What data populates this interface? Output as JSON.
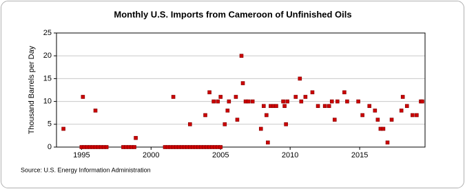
{
  "chart_data": {
    "type": "scatter",
    "title": "Monthly U.S. Imports from Cameroon of Unfinished Oils",
    "y_label": "Thousand Barrels per Day",
    "source": "Source: U.S. Energy Information Administration",
    "xlim": [
      1993.2,
      2019.7
    ],
    "xticks": [
      1995,
      2000,
      2005,
      2010,
      2015
    ],
    "ylim": [
      0,
      25
    ],
    "yticks": [
      0,
      5,
      10,
      15,
      20,
      25
    ],
    "grid": true,
    "series": [
      {
        "color": "#cc0000",
        "x": [
          1993.7,
          1995.0,
          1995.1,
          1995.2,
          1995.4,
          1995.6,
          1995.8,
          1996.0,
          1996.0,
          1996.2,
          1996.4,
          1996.6,
          1996.8,
          1998.0,
          1998.2,
          1998.4,
          1998.6,
          1998.8,
          1998.9,
          2001.0,
          2001.2,
          2001.4,
          2001.6,
          2001.6,
          2001.8,
          2002.0,
          2002.2,
          2002.4,
          2002.6,
          2002.8,
          2002.8,
          2003.0,
          2003.2,
          2003.4,
          2003.6,
          2003.8,
          2003.9,
          2004.0,
          2004.2,
          2004.2,
          2004.4,
          2004.5,
          2004.6,
          2004.8,
          2004.8,
          2005.0,
          2005.0,
          2005.3,
          2005.5,
          2005.6,
          2006.1,
          2006.2,
          2006.5,
          2006.6,
          2006.8,
          2007.0,
          2007.3,
          2007.9,
          2008.1,
          2008.3,
          2008.4,
          2008.6,
          2008.8,
          2009.0,
          2009.5,
          2009.6,
          2009.7,
          2009.8,
          2010.4,
          2010.7,
          2010.8,
          2011.1,
          2011.6,
          2012.0,
          2012.5,
          2012.8,
          2013.0,
          2013.2,
          2013.4,
          2013.9,
          2014.1,
          2014.9,
          2015.2,
          2015.7,
          2016.1,
          2016.3,
          2016.5,
          2016.7,
          2017.0,
          2017.3,
          2018.0,
          2018.1,
          2018.4,
          2018.8,
          2019.1,
          2019.4,
          2019.5
        ],
        "values": [
          4,
          0,
          11,
          0,
          0,
          0,
          0,
          0,
          8,
          0,
          0,
          0,
          0,
          0,
          0,
          0,
          0,
          0,
          2,
          0,
          0,
          0,
          0,
          11,
          0,
          0,
          0,
          0,
          0,
          0,
          5,
          0,
          0,
          0,
          0,
          0,
          7,
          0,
          0,
          12,
          0,
          10,
          0,
          0,
          10,
          0,
          11,
          5,
          8,
          10,
          11,
          6,
          20,
          14,
          10,
          10,
          10,
          4,
          9,
          7,
          1,
          9,
          9,
          9,
          10,
          9,
          5,
          10,
          11,
          15,
          10,
          11,
          12,
          9,
          9,
          9,
          10,
          6,
          10,
          12,
          10,
          10,
          7,
          9,
          8,
          6,
          4,
          4,
          1,
          6,
          8,
          11,
          9,
          7,
          7,
          10,
          10
        ]
      }
    ]
  }
}
